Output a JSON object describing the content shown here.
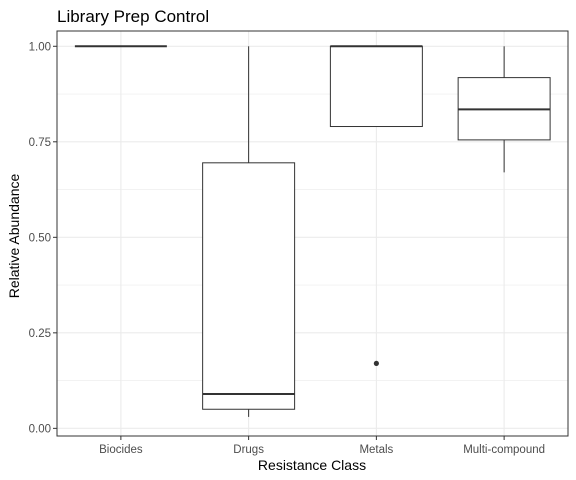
{
  "chart_data": {
    "type": "boxplot",
    "title": "Library Prep Control",
    "xlabel": "Resistance Class",
    "ylabel": "Relative Abundance",
    "ylim": [
      -0.02,
      1.04
    ],
    "yticks": [
      0.0,
      0.25,
      0.5,
      0.75,
      1.0
    ],
    "ytick_labels": [
      "0.00",
      "0.25",
      "0.50",
      "0.75",
      "1.00"
    ],
    "grid": true,
    "categories": [
      "Biocides",
      "Drugs",
      "Metals",
      "Multi-compound"
    ],
    "boxes": [
      {
        "category": "Biocides",
        "whisker_low": 1.0,
        "q1": 1.0,
        "median": 1.0,
        "q3": 1.0,
        "whisker_high": 1.0,
        "outliers": []
      },
      {
        "category": "Drugs",
        "whisker_low": 0.03,
        "q1": 0.05,
        "median": 0.09,
        "q3": 0.695,
        "whisker_high": 1.0,
        "outliers": []
      },
      {
        "category": "Metals",
        "whisker_low": 0.79,
        "q1": 0.79,
        "median": 1.0,
        "q3": 1.0,
        "whisker_high": 1.0,
        "outliers": [
          0.17
        ]
      },
      {
        "category": "Multi-compound",
        "whisker_low": 0.67,
        "q1": 0.755,
        "median": 0.835,
        "q3": 0.918,
        "whisker_high": 1.0,
        "outliers": []
      }
    ],
    "colors": {
      "box_fill": "#ffffff",
      "box_line": "#333333",
      "grid": "#ebebeb",
      "panel_border": "#333333"
    }
  }
}
